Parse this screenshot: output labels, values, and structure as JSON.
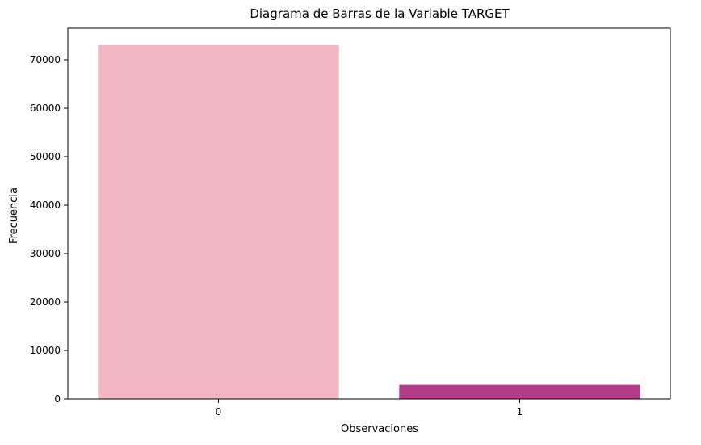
{
  "chart_data": {
    "type": "bar",
    "title": "Diagrama de Barras de la Variable TARGET",
    "xlabel": "Observaciones",
    "ylabel": "Frecuencia",
    "categories": [
      "0",
      "1"
    ],
    "values": [
      73000,
      2900
    ],
    "colors": [
      "#f2b5c2",
      "#b7398c"
    ],
    "ylim": [
      0,
      76500
    ],
    "yticks": [
      0,
      10000,
      20000,
      30000,
      40000,
      50000,
      60000,
      70000
    ],
    "grid": false,
    "legend": "none"
  }
}
